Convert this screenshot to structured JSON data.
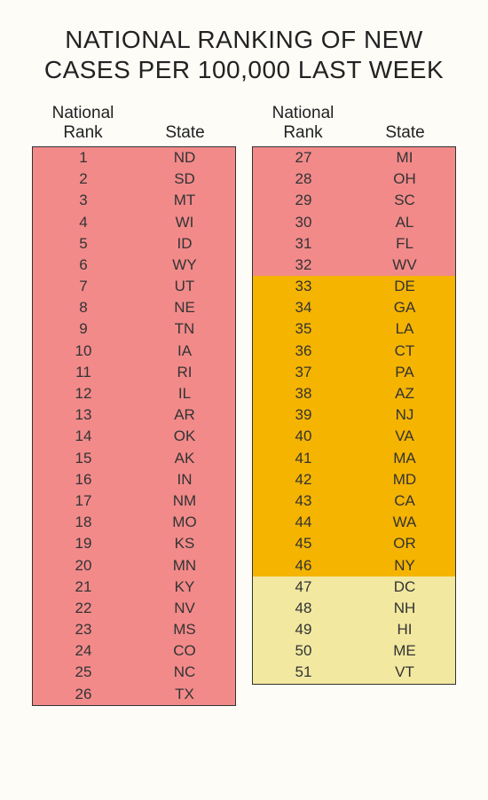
{
  "title": "NATIONAL RANKING OF NEW CASES PER 100,000 LAST WEEK",
  "header_rank": "National\nRank",
  "header_state": "State",
  "table": {
    "type": "table",
    "columns": [
      "National Rank",
      "State"
    ],
    "title_fontsize": 28,
    "header_fontsize": 19,
    "cell_fontsize": 17,
    "row_height": 24.2,
    "border_color": "#333333",
    "background_color": "#fdfcf7",
    "text_color": "#333333",
    "tier_colors": {
      "high": "#f28a8a",
      "mid": "#f5b400",
      "low": "#f2e8a0"
    },
    "rows": [
      {
        "rank": 1,
        "state": "ND",
        "tier": "high"
      },
      {
        "rank": 2,
        "state": "SD",
        "tier": "high"
      },
      {
        "rank": 3,
        "state": "MT",
        "tier": "high"
      },
      {
        "rank": 4,
        "state": "WI",
        "tier": "high"
      },
      {
        "rank": 5,
        "state": "ID",
        "tier": "high"
      },
      {
        "rank": 6,
        "state": "WY",
        "tier": "high"
      },
      {
        "rank": 7,
        "state": "UT",
        "tier": "high"
      },
      {
        "rank": 8,
        "state": "NE",
        "tier": "high"
      },
      {
        "rank": 9,
        "state": "TN",
        "tier": "high"
      },
      {
        "rank": 10,
        "state": "IA",
        "tier": "high"
      },
      {
        "rank": 11,
        "state": "RI",
        "tier": "high"
      },
      {
        "rank": 12,
        "state": "IL",
        "tier": "high"
      },
      {
        "rank": 13,
        "state": "AR",
        "tier": "high"
      },
      {
        "rank": 14,
        "state": "OK",
        "tier": "high"
      },
      {
        "rank": 15,
        "state": "AK",
        "tier": "high"
      },
      {
        "rank": 16,
        "state": "IN",
        "tier": "high"
      },
      {
        "rank": 17,
        "state": "NM",
        "tier": "high"
      },
      {
        "rank": 18,
        "state": "MO",
        "tier": "high"
      },
      {
        "rank": 19,
        "state": "KS",
        "tier": "high"
      },
      {
        "rank": 20,
        "state": "MN",
        "tier": "high"
      },
      {
        "rank": 21,
        "state": "KY",
        "tier": "high"
      },
      {
        "rank": 22,
        "state": "NV",
        "tier": "high"
      },
      {
        "rank": 23,
        "state": "MS",
        "tier": "high"
      },
      {
        "rank": 24,
        "state": "CO",
        "tier": "high"
      },
      {
        "rank": 25,
        "state": "NC",
        "tier": "high"
      },
      {
        "rank": 26,
        "state": "TX",
        "tier": "high"
      },
      {
        "rank": 27,
        "state": "MI",
        "tier": "high"
      },
      {
        "rank": 28,
        "state": "OH",
        "tier": "high"
      },
      {
        "rank": 29,
        "state": "SC",
        "tier": "high"
      },
      {
        "rank": 30,
        "state": "AL",
        "tier": "high"
      },
      {
        "rank": 31,
        "state": "FL",
        "tier": "high"
      },
      {
        "rank": 32,
        "state": "WV",
        "tier": "high"
      },
      {
        "rank": 33,
        "state": "DE",
        "tier": "mid"
      },
      {
        "rank": 34,
        "state": "GA",
        "tier": "mid"
      },
      {
        "rank": 35,
        "state": "LA",
        "tier": "mid"
      },
      {
        "rank": 36,
        "state": "CT",
        "tier": "mid"
      },
      {
        "rank": 37,
        "state": "PA",
        "tier": "mid"
      },
      {
        "rank": 38,
        "state": "AZ",
        "tier": "mid"
      },
      {
        "rank": 39,
        "state": "NJ",
        "tier": "mid"
      },
      {
        "rank": 40,
        "state": "VA",
        "tier": "mid"
      },
      {
        "rank": 41,
        "state": "MA",
        "tier": "mid"
      },
      {
        "rank": 42,
        "state": "MD",
        "tier": "mid"
      },
      {
        "rank": 43,
        "state": "CA",
        "tier": "mid"
      },
      {
        "rank": 44,
        "state": "WA",
        "tier": "mid"
      },
      {
        "rank": 45,
        "state": "OR",
        "tier": "mid"
      },
      {
        "rank": 46,
        "state": "NY",
        "tier": "mid"
      },
      {
        "rank": 47,
        "state": "DC",
        "tier": "low"
      },
      {
        "rank": 48,
        "state": "NH",
        "tier": "low"
      },
      {
        "rank": 49,
        "state": "HI",
        "tier": "low"
      },
      {
        "rank": 50,
        "state": "ME",
        "tier": "low"
      },
      {
        "rank": 51,
        "state": "VT",
        "tier": "low"
      }
    ],
    "split_at": 26
  }
}
